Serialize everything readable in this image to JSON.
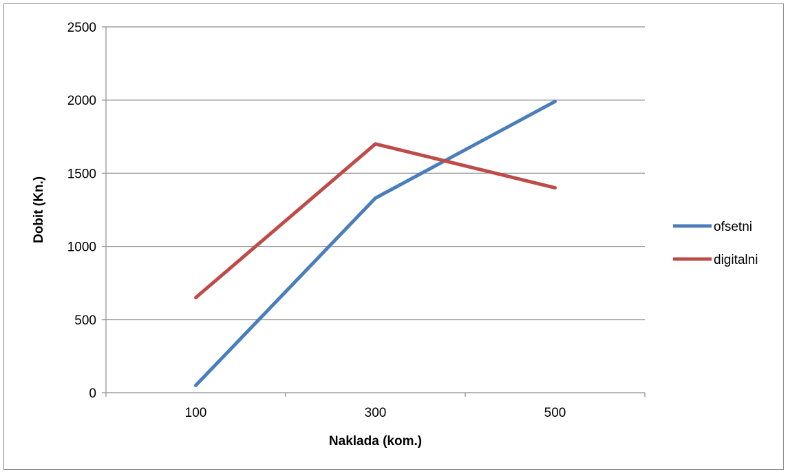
{
  "chart_data": {
    "type": "line",
    "title": "",
    "xlabel": "Naklada (kom.)",
    "ylabel": "Dobit (Kn.)",
    "categories": [
      "100",
      "300",
      "500"
    ],
    "ylim": [
      0,
      2500
    ],
    "yticks": [
      0,
      500,
      1000,
      1500,
      2000,
      2500
    ],
    "grid": true,
    "legend_position": "right",
    "series": [
      {
        "name": "ofsetni",
        "color": "#4a7ebb",
        "values": [
          50,
          1330,
          1990
        ]
      },
      {
        "name": "digitalni",
        "color": "#be4b48",
        "values": [
          650,
          1700,
          1400
        ]
      }
    ]
  }
}
